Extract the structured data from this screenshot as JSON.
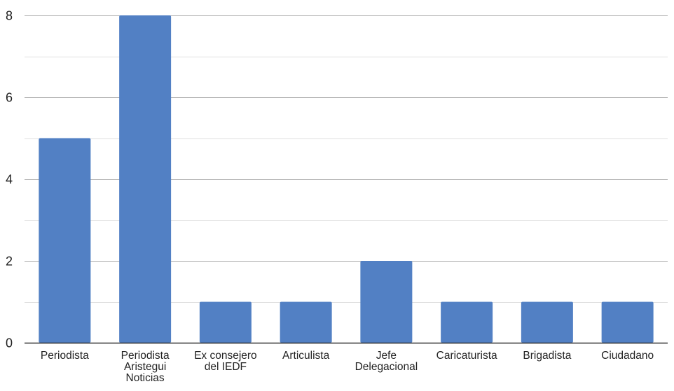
{
  "chart_data": {
    "type": "bar",
    "title": "",
    "xlabel": "",
    "ylabel": "",
    "categories": [
      [
        "Periodista"
      ],
      [
        "Periodista",
        "Aristegui",
        "Noticias"
      ],
      [
        "Ex consejero",
        "del IEDF"
      ],
      [
        "Articulista"
      ],
      [
        "Jefe",
        "Delegacional"
      ],
      [
        "Caricaturista"
      ],
      [
        "Brigadista"
      ],
      [
        "Ciudadano"
      ]
    ],
    "values": [
      5,
      8,
      1,
      1,
      2,
      1,
      1,
      1
    ],
    "ylim": [
      0,
      8
    ],
    "y_ticks": [
      0,
      2,
      4,
      6,
      8
    ],
    "minor_gridlines": [
      1,
      3,
      5,
      7
    ],
    "grid": true,
    "legend": "none",
    "colors": {
      "bar": "#5280c4",
      "major_grid": "#b3b3b3",
      "minor_grid": "#e0e0e0",
      "axis": "#333333",
      "text": "#222222"
    }
  }
}
